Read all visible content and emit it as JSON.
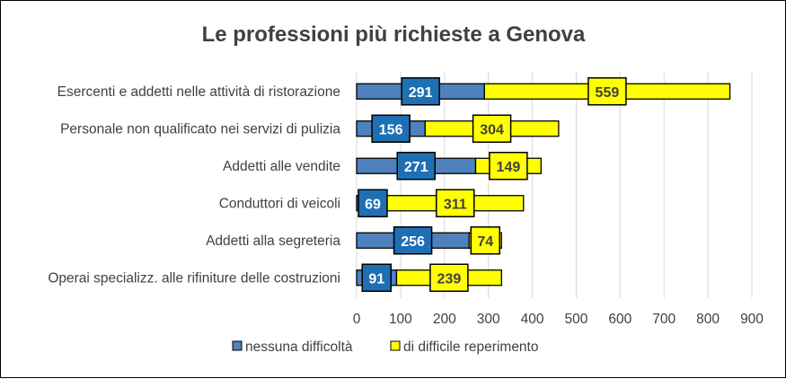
{
  "chart_data": {
    "type": "bar",
    "orientation": "horizontal",
    "stacked": true,
    "title": "Le professioni più richieste a Genova",
    "categories": [
      "Esercenti e addetti nelle attività di ristorazione",
      "Personale non qualificato nei servizi di pulizia",
      "Addetti alle vendite",
      "Conduttori di veicoli",
      "Addetti alla segreteria",
      "Operai specializz. alle rifiniture delle costruzioni"
    ],
    "series": [
      {
        "name": "nessuna difficoltà",
        "values": [
          291,
          156,
          271,
          69,
          256,
          91
        ],
        "color": "#4F81BD",
        "label_color": "#1F6FB5"
      },
      {
        "name": "di difficile reperimento",
        "values": [
          559,
          304,
          149,
          311,
          74,
          239
        ],
        "color": "#FFFF00",
        "label_color": "#FFFF00"
      }
    ],
    "xlim": [
      0,
      900
    ],
    "x_ticks": [
      0,
      100,
      200,
      300,
      400,
      500,
      600,
      700,
      800,
      900
    ],
    "grid": "vertical",
    "legend_position": "bottom"
  }
}
